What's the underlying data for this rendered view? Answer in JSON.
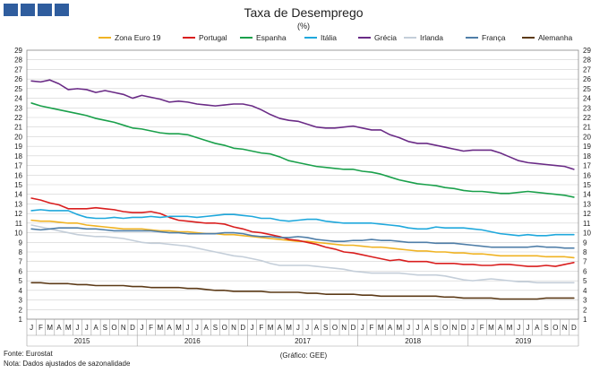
{
  "header": {
    "logo_alt": "logo",
    "title": "Taxa de Desemprego",
    "subtitle": "(%)"
  },
  "footer": {
    "source": "Fonte: Eurostat",
    "note": "Nota: Dados ajustados de sazonalidade",
    "credit": "(Gráfico: GEE)"
  },
  "chart_data": {
    "type": "line",
    "title": "Taxa de Desemprego",
    "subtitle": "(%)",
    "ylim": [
      1,
      29
    ],
    "yticks": [
      1,
      2,
      3,
      4,
      5,
      6,
      7,
      8,
      9,
      10,
      11,
      12,
      13,
      14,
      15,
      16,
      17,
      18,
      19,
      20,
      21,
      22,
      23,
      24,
      25,
      26,
      27,
      28,
      29
    ],
    "grid": true,
    "legend_position": "top",
    "month_labels": [
      "J",
      "F",
      "M",
      "A",
      "M",
      "J",
      "J",
      "A",
      "S",
      "O",
      "N",
      "D"
    ],
    "years": [
      "2015",
      "2016",
      "2017",
      "2018",
      "2019"
    ],
    "x": [
      "2015-01",
      "2015-02",
      "2015-03",
      "2015-04",
      "2015-05",
      "2015-06",
      "2015-07",
      "2015-08",
      "2015-09",
      "2015-10",
      "2015-11",
      "2015-12",
      "2016-01",
      "2016-02",
      "2016-03",
      "2016-04",
      "2016-05",
      "2016-06",
      "2016-07",
      "2016-08",
      "2016-09",
      "2016-10",
      "2016-11",
      "2016-12",
      "2017-01",
      "2017-02",
      "2017-03",
      "2017-04",
      "2017-05",
      "2017-06",
      "2017-07",
      "2017-08",
      "2017-09",
      "2017-10",
      "2017-11",
      "2017-12",
      "2018-01",
      "2018-02",
      "2018-03",
      "2018-04",
      "2018-05",
      "2018-06",
      "2018-07",
      "2018-08",
      "2018-09",
      "2018-10",
      "2018-11",
      "2018-12",
      "2019-01",
      "2019-02",
      "2019-03",
      "2019-04",
      "2019-05",
      "2019-06",
      "2019-07",
      "2019-08",
      "2019-09",
      "2019-10",
      "2019-11",
      "2019-12"
    ],
    "series": [
      {
        "name": "Zona Euro 19",
        "color": "#f0b323",
        "values": [
          11.3,
          11.2,
          11.2,
          11.1,
          11.0,
          11.0,
          10.8,
          10.7,
          10.6,
          10.5,
          10.4,
          10.4,
          10.4,
          10.3,
          10.2,
          10.2,
          10.1,
          10.1,
          10.0,
          9.9,
          9.9,
          9.8,
          9.8,
          9.7,
          9.6,
          9.5,
          9.4,
          9.3,
          9.2,
          9.1,
          9.1,
          9.0,
          8.9,
          8.8,
          8.7,
          8.7,
          8.6,
          8.5,
          8.5,
          8.4,
          8.3,
          8.2,
          8.1,
          8.1,
          8.0,
          8.0,
          7.9,
          7.9,
          7.8,
          7.8,
          7.7,
          7.6,
          7.6,
          7.6,
          7.6,
          7.6,
          7.5,
          7.5,
          7.5,
          7.4
        ]
      },
      {
        "name": "Portugal",
        "color": "#d91e1e",
        "values": [
          13.6,
          13.4,
          13.1,
          12.9,
          12.5,
          12.5,
          12.5,
          12.6,
          12.5,
          12.4,
          12.2,
          12.1,
          12.1,
          12.2,
          12.0,
          11.6,
          11.3,
          11.2,
          11.1,
          11.0,
          11.0,
          10.9,
          10.6,
          10.4,
          10.1,
          10.0,
          9.8,
          9.6,
          9.3,
          9.2,
          9.0,
          8.8,
          8.5,
          8.3,
          8.0,
          7.9,
          7.7,
          7.5,
          7.3,
          7.1,
          7.2,
          7.0,
          7.0,
          7.0,
          6.8,
          6.8,
          6.8,
          6.7,
          6.7,
          6.6,
          6.6,
          6.7,
          6.7,
          6.6,
          6.5,
          6.5,
          6.6,
          6.5,
          6.7,
          6.9
        ]
      },
      {
        "name": "Espanha",
        "color": "#1aa04b",
        "values": [
          23.5,
          23.2,
          23.0,
          22.8,
          22.6,
          22.4,
          22.2,
          21.9,
          21.7,
          21.5,
          21.2,
          20.9,
          20.8,
          20.6,
          20.4,
          20.3,
          20.3,
          20.2,
          19.9,
          19.6,
          19.3,
          19.1,
          18.8,
          18.7,
          18.5,
          18.3,
          18.2,
          17.9,
          17.5,
          17.3,
          17.1,
          16.9,
          16.8,
          16.7,
          16.6,
          16.6,
          16.4,
          16.3,
          16.1,
          15.8,
          15.5,
          15.3,
          15.1,
          15.0,
          14.9,
          14.7,
          14.6,
          14.4,
          14.3,
          14.3,
          14.2,
          14.1,
          14.1,
          14.2,
          14.3,
          14.2,
          14.1,
          14.0,
          13.9,
          13.7
        ]
      },
      {
        "name": "Itália",
        "color": "#1fa8dc",
        "values": [
          12.3,
          12.4,
          12.3,
          12.3,
          12.3,
          11.9,
          11.6,
          11.5,
          11.5,
          11.6,
          11.5,
          11.6,
          11.6,
          11.7,
          11.6,
          11.7,
          11.7,
          11.7,
          11.6,
          11.7,
          11.8,
          11.9,
          11.9,
          11.8,
          11.7,
          11.5,
          11.5,
          11.3,
          11.2,
          11.3,
          11.4,
          11.4,
          11.2,
          11.1,
          11.0,
          11.0,
          11.0,
          11.0,
          10.9,
          10.8,
          10.7,
          10.5,
          10.4,
          10.4,
          10.6,
          10.5,
          10.5,
          10.5,
          10.4,
          10.3,
          10.1,
          9.9,
          9.8,
          9.7,
          9.8,
          9.7,
          9.7,
          9.8,
          9.8,
          9.8
        ]
      },
      {
        "name": "Grécia",
        "color": "#6a2b86",
        "values": [
          25.8,
          25.7,
          25.9,
          25.5,
          24.9,
          25.0,
          24.9,
          24.6,
          24.8,
          24.6,
          24.4,
          24.0,
          24.3,
          24.1,
          23.9,
          23.6,
          23.7,
          23.6,
          23.4,
          23.3,
          23.2,
          23.3,
          23.4,
          23.4,
          23.2,
          22.8,
          22.3,
          21.9,
          21.7,
          21.6,
          21.3,
          21.0,
          20.9,
          20.9,
          21.0,
          21.1,
          20.9,
          20.7,
          20.7,
          20.2,
          19.9,
          19.5,
          19.3,
          19.3,
          19.1,
          18.9,
          18.7,
          18.5,
          18.6,
          18.6,
          18.6,
          18.3,
          17.9,
          17.5,
          17.3,
          17.2,
          17.1,
          17.0,
          16.9,
          16.6
        ]
      },
      {
        "name": "Irlanda",
        "color": "#c4ced9",
        "values": [
          10.8,
          10.6,
          10.4,
          10.2,
          10.0,
          9.8,
          9.7,
          9.6,
          9.6,
          9.5,
          9.4,
          9.2,
          9.0,
          8.9,
          8.9,
          8.8,
          8.7,
          8.6,
          8.4,
          8.2,
          8.0,
          7.8,
          7.6,
          7.5,
          7.3,
          7.1,
          6.8,
          6.6,
          6.6,
          6.6,
          6.6,
          6.5,
          6.4,
          6.3,
          6.2,
          6.0,
          5.9,
          5.8,
          5.8,
          5.8,
          5.8,
          5.7,
          5.6,
          5.6,
          5.6,
          5.5,
          5.3,
          5.1,
          5.0,
          5.1,
          5.2,
          5.1,
          5.0,
          4.9,
          4.9,
          4.8,
          4.8,
          4.8,
          4.8,
          4.8
        ]
      },
      {
        "name": "França",
        "color": "#4f7ea8",
        "values": [
          10.4,
          10.3,
          10.4,
          10.5,
          10.5,
          10.5,
          10.4,
          10.4,
          10.3,
          10.2,
          10.2,
          10.2,
          10.2,
          10.2,
          10.1,
          10.0,
          10.0,
          9.9,
          9.9,
          9.9,
          9.9,
          10.0,
          10.0,
          9.9,
          9.7,
          9.6,
          9.6,
          9.5,
          9.5,
          9.6,
          9.5,
          9.3,
          9.2,
          9.1,
          9.1,
          9.2,
          9.2,
          9.3,
          9.2,
          9.2,
          9.1,
          9.0,
          9.0,
          9.0,
          8.9,
          8.9,
          8.9,
          8.8,
          8.7,
          8.6,
          8.5,
          8.5,
          8.5,
          8.5,
          8.5,
          8.6,
          8.5,
          8.5,
          8.4,
          8.4
        ]
      },
      {
        "name": "Alemanha",
        "color": "#5c3a17",
        "values": [
          4.8,
          4.8,
          4.7,
          4.7,
          4.7,
          4.6,
          4.6,
          4.5,
          4.5,
          4.5,
          4.5,
          4.4,
          4.4,
          4.3,
          4.3,
          4.3,
          4.3,
          4.2,
          4.2,
          4.1,
          4.0,
          4.0,
          3.9,
          3.9,
          3.9,
          3.9,
          3.8,
          3.8,
          3.8,
          3.8,
          3.7,
          3.7,
          3.6,
          3.6,
          3.6,
          3.6,
          3.5,
          3.5,
          3.4,
          3.4,
          3.4,
          3.4,
          3.4,
          3.4,
          3.4,
          3.3,
          3.3,
          3.2,
          3.2,
          3.2,
          3.2,
          3.1,
          3.1,
          3.1,
          3.1,
          3.1,
          3.2,
          3.2,
          3.2,
          3.2
        ]
      }
    ]
  }
}
